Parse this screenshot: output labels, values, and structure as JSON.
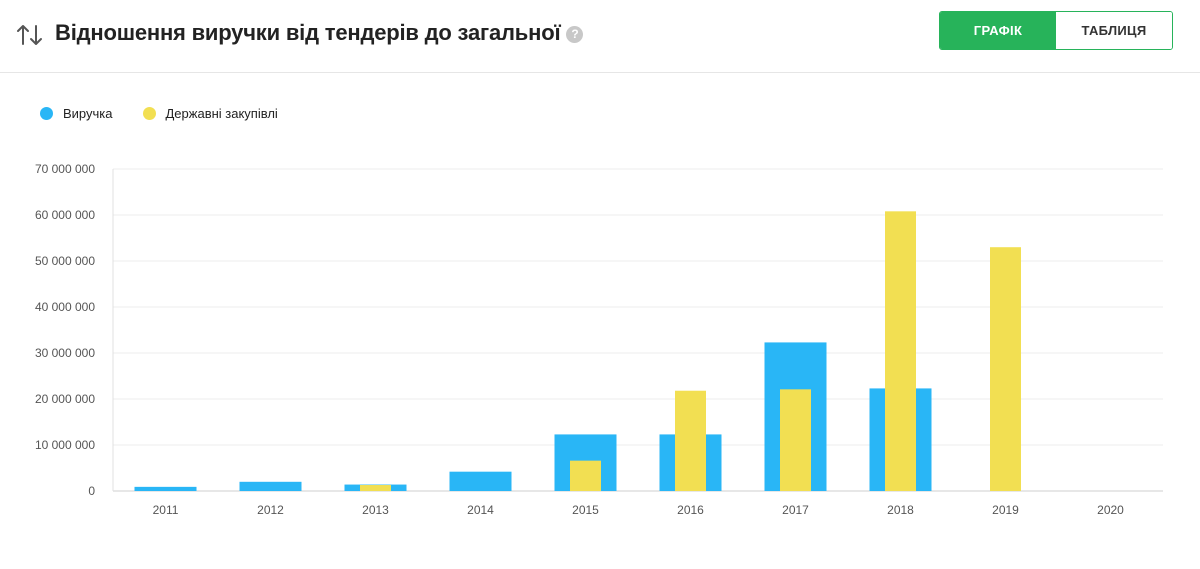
{
  "header": {
    "title": "Відношення виручки від тендерів до загальної",
    "help_icon": "?",
    "toggle": {
      "chart_label": "ГРАФІК",
      "table_label": "ТАБЛИЦЯ",
      "active": "chart"
    }
  },
  "colors": {
    "revenue": "#29b6f6",
    "procurement": "#f2df52",
    "accent": "#27b35a"
  },
  "chart_data": {
    "type": "bar",
    "categories": [
      "2011",
      "2012",
      "2013",
      "2014",
      "2015",
      "2016",
      "2017",
      "2018",
      "2019",
      "2020"
    ],
    "series": [
      {
        "name": "Виручка",
        "values": [
          900000,
          2000000,
          1400000,
          4200000,
          12300000,
          12300000,
          32300000,
          22300000,
          0,
          0
        ]
      },
      {
        "name": "Державні закупівлі",
        "values": [
          0,
          0,
          1300000,
          0,
          6600000,
          21800000,
          22100000,
          60800000,
          53000000,
          0
        ]
      }
    ],
    "ylim": [
      0,
      70000000
    ],
    "yticks": [
      0,
      10000000,
      20000000,
      30000000,
      40000000,
      50000000,
      60000000,
      70000000
    ],
    "ytick_labels": [
      "0",
      "10 000 000",
      "20 000 000",
      "30 000 000",
      "40 000 000",
      "50 000 000",
      "60 000 000",
      "70 000 000"
    ],
    "grid": true,
    "legend_position": "top-left",
    "title": "",
    "xlabel": "",
    "ylabel": ""
  }
}
